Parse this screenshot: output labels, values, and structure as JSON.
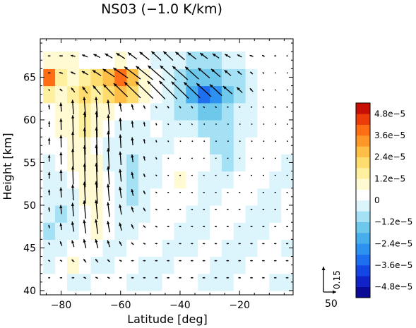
{
  "chart_data": {
    "type": "heatmap",
    "title": "NS03 (−1.0 K/km)",
    "xlabel": "Latitude [deg]",
    "ylabel": "Height [km]",
    "xlim": [
      -87,
      -2
    ],
    "ylim": [
      39.5,
      69.5
    ],
    "x_ticks": [
      {
        "value": -80,
        "label": "−80"
      },
      {
        "value": -60,
        "label": "−60"
      },
      {
        "value": -40,
        "label": "−40"
      },
      {
        "value": -20,
        "label": "−20"
      }
    ],
    "y_ticks": [
      {
        "value": 40,
        "label": "40"
      },
      {
        "value": 45,
        "label": "45"
      },
      {
        "value": 50,
        "label": "50"
      },
      {
        "value": 55,
        "label": "55"
      },
      {
        "value": 60,
        "label": "60"
      },
      {
        "value": 65,
        "label": "65"
      }
    ],
    "colorbar": {
      "levels": [
        -5.4e-05,
        -4.8e-05,
        -4.2e-05,
        -3.6e-05,
        -3e-05,
        -2.4e-05,
        -1.8e-05,
        -1.2e-05,
        -6e-06,
        0,
        6e-06,
        1.2e-05,
        1.8e-05,
        2.4e-05,
        3e-05,
        3.6e-05,
        4.2e-05,
        4.8e-05,
        5.4e-05
      ],
      "colors": [
        "#0a0a96",
        "#0f23c8",
        "#1446e6",
        "#1e6ef0",
        "#2d91f0",
        "#46afeb",
        "#6ec8eb",
        "#a5e1f5",
        "#dcf5fc",
        "#ffffff",
        "#fffad2",
        "#fff0a0",
        "#ffdc6e",
        "#ffbe46",
        "#ff9628",
        "#ff6e14",
        "#eb3c0a",
        "#c80f05"
      ],
      "tick_labels": [
        {
          "value": 4.8e-05,
          "label": "4.8e−5"
        },
        {
          "value": 3.6e-05,
          "label": "3.6e−5"
        },
        {
          "value": 2.4e-05,
          "label": "2.4e−5"
        },
        {
          "value": 1.2e-05,
          "label": "1.2e−5"
        },
        {
          "value": 0,
          "label": "0"
        },
        {
          "value": -1.2e-05,
          "label": "−1.2e−5"
        },
        {
          "value": -2.4e-05,
          "label": "−2.4e−5"
        },
        {
          "value": -3.6e-05,
          "label": "−3.6e−5"
        },
        {
          "value": -4.8e-05,
          "label": "−4.8e−5"
        }
      ]
    },
    "field": {
      "x": [
        -84,
        -80,
        -76,
        -72,
        -68,
        -64,
        -60,
        -56,
        -52,
        -48,
        -44,
        -40,
        -36,
        -32,
        -28,
        -24,
        -20,
        -16,
        -12,
        -8,
        -4
      ],
      "y": [
        41,
        43,
        45,
        47,
        49,
        51,
        53,
        55,
        57,
        59,
        61,
        63,
        65,
        67
      ],
      "values": [
        [
          2e-06,
          4e-06,
          -4e-06,
          -3e-06,
          0,
          2e-06,
          0,
          -3e-06,
          -4e-06,
          -2e-06,
          0,
          2e-06,
          0,
          -2e-06,
          -4e-06,
          -3e-06,
          0,
          2e-06,
          0,
          -3e-06,
          -2e-06
        ],
        [
          -4e-06,
          2e-06,
          6e-06,
          3e-06,
          -3e-06,
          -2e-06,
          3e-06,
          2e-06,
          -3e-06,
          -5e-06,
          -3e-06,
          0,
          3e-06,
          2e-06,
          -3e-06,
          -5e-06,
          -3e-06,
          0,
          3e-06,
          5e-06,
          0
        ],
        [
          -6e-06,
          -3e-06,
          2e-06,
          5e-06,
          2e-06,
          -3e-06,
          -2e-06,
          3e-06,
          4e-06,
          0,
          -4e-06,
          -5e-06,
          -2e-06,
          2e-06,
          0,
          -4e-06,
          -6e-06,
          -3e-06,
          0,
          4e-06,
          -2e-06
        ],
        [
          -7e-06,
          -5e-06,
          -4e-06,
          3e-06,
          6e-06,
          3e-06,
          -2e-06,
          -3e-06,
          2e-06,
          4e-06,
          0,
          -5e-06,
          -6e-06,
          -3e-06,
          2e-06,
          2e-06,
          -3e-06,
          -5e-06,
          -3e-06,
          0,
          3e-06
        ],
        [
          -5e-06,
          -7e-06,
          -5e-06,
          5e-06,
          9e-06,
          5e-06,
          -3e-06,
          -5e-06,
          -3e-06,
          3e-06,
          5e-06,
          0,
          -5e-06,
          -5e-06,
          0,
          3e-06,
          0,
          -4e-06,
          -5e-06,
          -3e-06,
          2e-06
        ],
        [
          -3e-06,
          -6e-06,
          -4e-06,
          7e-06,
          1e-05,
          4e-06,
          -4e-06,
          -7e-06,
          -5e-06,
          0,
          4e-06,
          5e-06,
          0,
          -4e-06,
          -3e-06,
          2e-06,
          4e-06,
          0,
          -5e-06,
          -4e-06,
          0
        ],
        [
          -5e-06,
          -4e-06,
          3e-06,
          8e-06,
          8e-06,
          2e-06,
          -5e-06,
          -8e-06,
          -5e-06,
          -2e-06,
          3e-06,
          6e-06,
          4e-06,
          -2e-06,
          -5e-06,
          -2e-06,
          3e-06,
          5e-06,
          0,
          -3e-06,
          -2e-06
        ],
        [
          -3e-06,
          0,
          6e-06,
          1e-05,
          6e-06,
          -2e-06,
          -6e-06,
          -7e-06,
          -4e-06,
          -2e-06,
          0,
          4e-06,
          5e-06,
          0,
          -6e-06,
          -7e-06,
          -2e-06,
          3e-06,
          4e-06,
          0,
          -3e-06
        ],
        [
          0,
          4e-06,
          8e-06,
          1.1e-05,
          5e-06,
          -3e-06,
          -5e-06,
          -5e-06,
          -3e-06,
          -2e-06,
          -3e-06,
          0,
          3e-06,
          0,
          -7e-06,
          -9e-06,
          -5e-06,
          0,
          3e-06,
          2e-06,
          0
        ],
        [
          3e-06,
          6e-06,
          1e-05,
          1.2e-05,
          6e-06,
          0,
          -3e-06,
          -3e-06,
          -2e-06,
          0,
          -4e-06,
          -6e-06,
          -5e-06,
          -8e-06,
          -1.2e-05,
          -1e-05,
          -6e-06,
          -2e-06,
          0,
          2e-06,
          3e-06
        ],
        [
          5e-06,
          8e-06,
          1.1e-05,
          1.3e-05,
          1e-05,
          6e-06,
          4e-06,
          3e-06,
          0,
          -3e-06,
          -6e-06,
          -9e-06,
          -1.2e-05,
          -1.5e-05,
          -1.6e-05,
          -1.2e-05,
          -6e-06,
          -2e-06,
          0,
          3e-06,
          4e-06
        ],
        [
          1.2e-05,
          1e-05,
          1.6e-05,
          2e-05,
          1.4e-05,
          1.8e-05,
          2.4e-05,
          1.8e-05,
          8e-06,
          0,
          -6e-06,
          -1.2e-05,
          -2.2e-05,
          -3.4e-05,
          -2.8e-05,
          -1.6e-05,
          -8e-06,
          -3e-06,
          0,
          3e-06,
          3e-06
        ],
        [
          3.8e-05,
          1.4e-05,
          8e-06,
          1.2e-05,
          1.8e-05,
          2.8e-05,
          3.6e-05,
          2.4e-05,
          8e-06,
          0,
          -5e-06,
          -1e-05,
          -1.6e-05,
          -1.8e-05,
          -1.6e-05,
          -1.2e-05,
          -8e-06,
          -3e-06,
          0,
          3e-06,
          2e-06
        ],
        [
          6e-06,
          9e-06,
          6e-06,
          3e-06,
          2e-06,
          4e-06,
          6e-06,
          4e-06,
          0,
          -3e-06,
          -4e-06,
          -5e-06,
          -7e-06,
          -8e-06,
          -7e-06,
          -5e-06,
          -3e-06,
          0,
          2e-06,
          0,
          0
        ]
      ]
    },
    "vectors": {
      "x": [
        -84,
        -80,
        -76,
        -72,
        -68,
        -64,
        -60,
        -56,
        -52,
        -48,
        -44,
        -40,
        -36,
        -32,
        -28,
        -24,
        -20,
        -16,
        -12,
        -8,
        -4
      ],
      "y": [
        41.5,
        43.5,
        45.5,
        47.5,
        49.5,
        51.5,
        53.5,
        55.5,
        57.5,
        59.5,
        61.5,
        63.5,
        65.5,
        67.5
      ],
      "u": [
        [
          -8,
          -9,
          -10,
          -10,
          -10,
          -10,
          -10,
          -10,
          -10,
          -10,
          -10,
          -10,
          -10,
          -10,
          -10,
          -10,
          -10,
          -10,
          -10,
          -10,
          -10
        ],
        [
          -8,
          -9,
          -10,
          -10,
          -10,
          -10,
          -10,
          -10,
          -10,
          -10,
          -10,
          -10,
          -10,
          -10,
          -10,
          -10,
          -10,
          -10,
          -10,
          -10,
          -10
        ],
        [
          -6,
          -7,
          -8,
          -8,
          -9,
          -9,
          -9,
          -9,
          -9,
          -9,
          -9,
          -9,
          -9,
          -9,
          -9,
          -9,
          -9,
          -9,
          -9,
          -9,
          -9
        ],
        [
          -4,
          -5,
          -6,
          -7,
          -8,
          -8,
          -8,
          -8,
          -8,
          -8,
          -8,
          -8,
          -8,
          -8,
          -8,
          -8,
          -8,
          -8,
          -8,
          -8,
          -8
        ],
        [
          -2,
          -3,
          -4,
          -6,
          -7,
          -7,
          -7,
          -7,
          -7,
          -7,
          -7,
          -7,
          -7,
          -7,
          -7,
          -7,
          -7,
          -7,
          -7,
          -7,
          -7
        ],
        [
          -1,
          -2,
          -3,
          -4,
          -5,
          -6,
          -6,
          -6,
          -6,
          -6,
          -6,
          -6,
          -6,
          -6,
          -6,
          -6,
          -6,
          -6,
          -6,
          -6,
          -6
        ],
        [
          0,
          -1,
          -2,
          -3,
          -4,
          -5,
          -5,
          -5,
          -5,
          -5,
          -5,
          -5,
          -5,
          -5,
          -5,
          -5,
          -5,
          -5,
          -5,
          -5,
          -5
        ],
        [
          0,
          -1,
          -2,
          -3,
          -4,
          -4,
          -4,
          -4,
          -4,
          -4,
          -4,
          -4,
          -4,
          -4,
          -4,
          -4,
          -4,
          -4,
          -4,
          -4,
          -4
        ],
        [
          0,
          -1,
          -2,
          -3,
          -3,
          -3,
          -3,
          -3,
          -3,
          -3,
          -3,
          -3,
          -3,
          -3,
          -3,
          -3,
          -3,
          -3,
          -3,
          -3,
          -3
        ],
        [
          0,
          -1,
          -2,
          -2,
          -3,
          -3,
          -3,
          -3,
          -3,
          -3,
          -3,
          -3,
          -3,
          -3,
          -3,
          -3,
          -3,
          -3,
          -3,
          -3,
          -3
        ],
        [
          -2,
          -3,
          -4,
          -6,
          -6,
          -6,
          -6,
          -6,
          -6,
          -6,
          -6,
          -6,
          -6,
          -6,
          -6,
          -6,
          -6,
          -6,
          -6,
          -6,
          -6
        ],
        [
          -6,
          -10,
          -14,
          -20,
          -30,
          -42,
          -55,
          -64,
          -68,
          -70,
          -70,
          -68,
          -64,
          -58,
          -48,
          -36,
          -22,
          -12,
          -6,
          -4,
          -2
        ],
        [
          -10,
          -14,
          -18,
          -24,
          -34,
          -46,
          -58,
          -64,
          -66,
          -66,
          -64,
          -60,
          -54,
          -46,
          -36,
          -26,
          -16,
          -10,
          -6,
          -4,
          -2
        ],
        [
          -10,
          -14,
          -18,
          -22,
          -26,
          -30,
          -34,
          -36,
          -38,
          -38,
          -38,
          -36,
          -34,
          -30,
          -26,
          -22,
          -18,
          -14,
          -10,
          -8,
          -6
        ]
      ],
      "w": [
        [
          0,
          0,
          0,
          0.01,
          0.01,
          0.01,
          0,
          0,
          0,
          0,
          0,
          0,
          0,
          0,
          0,
          0,
          0,
          0,
          0,
          0,
          0
        ],
        [
          0.01,
          0.01,
          0.02,
          0.03,
          0.03,
          0.02,
          0.01,
          0,
          0,
          0,
          0,
          0,
          0,
          0,
          0,
          0,
          0,
          0,
          0,
          0,
          0
        ],
        [
          0.02,
          0.04,
          0.06,
          0.08,
          0.08,
          0.06,
          0.04,
          0.02,
          0.01,
          0,
          0,
          0,
          0,
          0,
          0,
          0,
          0,
          0,
          0,
          0,
          0
        ],
        [
          0.03,
          0.06,
          0.09,
          0.12,
          0.13,
          0.1,
          0.07,
          0.04,
          0.02,
          0.01,
          0,
          0,
          0,
          0,
          0,
          0,
          0,
          0,
          0,
          0,
          0
        ],
        [
          0.04,
          0.08,
          0.12,
          0.16,
          0.17,
          0.13,
          0.09,
          0.05,
          0.03,
          0.01,
          0,
          0,
          0,
          0,
          0,
          0,
          0,
          0,
          0,
          0,
          0
        ],
        [
          0.05,
          0.09,
          0.14,
          0.19,
          0.2,
          0.15,
          0.1,
          0.06,
          0.03,
          0.01,
          0,
          0,
          0,
          0,
          0,
          0,
          0,
          0,
          0,
          0,
          0
        ],
        [
          0.06,
          0.1,
          0.16,
          0.21,
          0.22,
          0.16,
          0.11,
          0.06,
          0.03,
          0.01,
          0,
          0,
          0,
          0,
          0,
          0,
          0,
          0,
          0,
          0,
          0
        ],
        [
          0.06,
          0.11,
          0.17,
          0.23,
          0.24,
          0.18,
          0.12,
          0.07,
          0.04,
          0.02,
          0,
          0,
          0,
          0,
          0,
          0,
          0,
          0,
          0,
          0,
          0
        ],
        [
          0.06,
          0.11,
          0.17,
          0.24,
          0.25,
          0.18,
          0.12,
          0.07,
          0.04,
          0.02,
          0.01,
          0,
          0,
          0,
          0,
          0,
          0,
          0,
          0,
          0,
          0
        ],
        [
          0.05,
          0.1,
          0.16,
          0.22,
          0.23,
          0.17,
          0.11,
          0.06,
          0.04,
          0.02,
          0.01,
          0.01,
          0.01,
          0,
          0,
          0,
          0,
          0,
          0,
          0,
          0
        ],
        [
          0.04,
          0.08,
          0.13,
          0.18,
          0.18,
          0.13,
          0.08,
          0.05,
          0.03,
          0.02,
          0.02,
          0.02,
          0.02,
          0.01,
          0.01,
          0,
          0,
          0,
          0,
          0,
          0
        ],
        [
          0.01,
          0.02,
          0.04,
          0.06,
          0.08,
          0.1,
          0.12,
          0.14,
          0.15,
          0.16,
          0.16,
          0.15,
          0.14,
          0.12,
          0.1,
          0.07,
          0.05,
          0.03,
          0.01,
          0,
          0
        ],
        [
          0,
          0.01,
          0.02,
          0.03,
          0.05,
          0.07,
          0.09,
          0.11,
          0.12,
          0.13,
          0.13,
          0.12,
          0.11,
          0.09,
          0.07,
          0.05,
          0.03,
          0.02,
          0.01,
          0,
          0
        ],
        [
          0,
          0,
          0.01,
          0.02,
          0.03,
          0.04,
          0.05,
          0.06,
          0.07,
          0.08,
          0.08,
          0.07,
          0.06,
          0.05,
          0.04,
          0.03,
          0.02,
          0.01,
          0.01,
          0,
          0
        ]
      ]
    },
    "reference_vector": {
      "u": 50,
      "w": 0.15,
      "u_label": "50",
      "w_label": "0.15"
    },
    "grid": false,
    "legend": "right"
  }
}
